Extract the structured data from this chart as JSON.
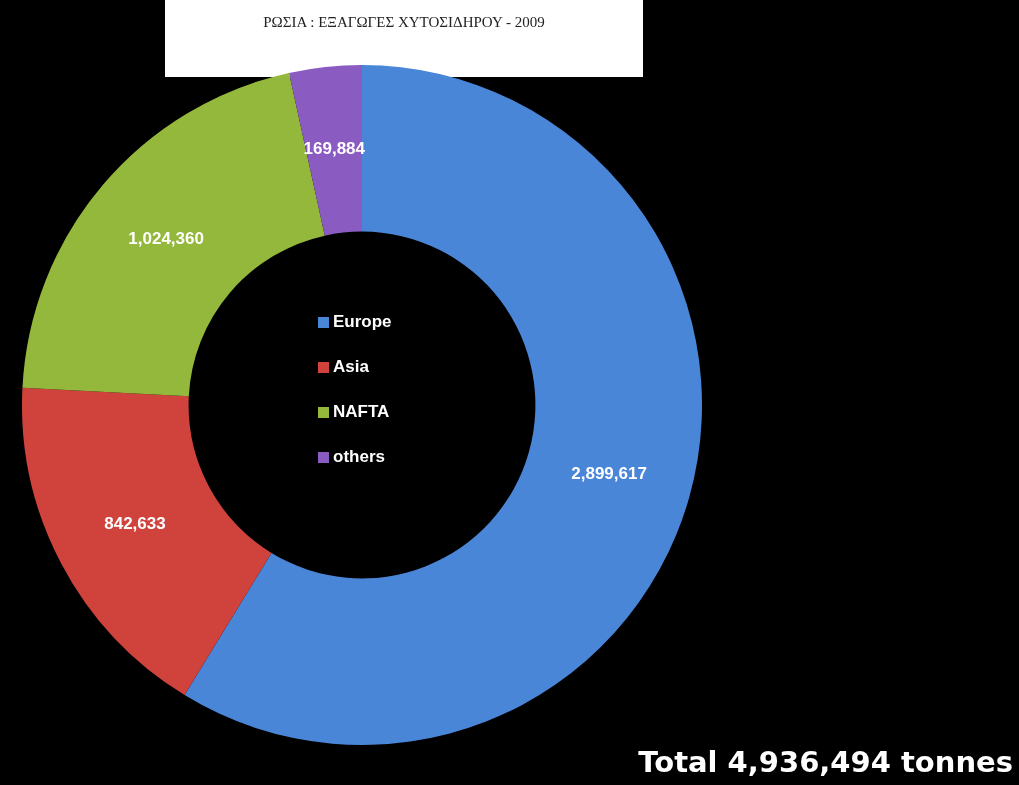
{
  "chart_data": {
    "type": "donut",
    "title": "ΡΩΣΙΑ : ΕΞΑΓΩΓΕΣ ΧΥΤΟΣΙΔΗΡΟΥ - 2009",
    "categories": [
      "Europe",
      "Asia",
      "NAFTA",
      "others"
    ],
    "values": [
      2899617,
      842633,
      1024360,
      169884
    ],
    "colors": [
      "#4a86d8",
      "#d0433c",
      "#93b83c",
      "#8a5cc2"
    ],
    "value_labels": [
      "2,899,617",
      "842,633",
      "1,024,360",
      "169,884"
    ],
    "legend": "center",
    "annotations": [
      "Total 4,936,494 tonnes"
    ]
  }
}
